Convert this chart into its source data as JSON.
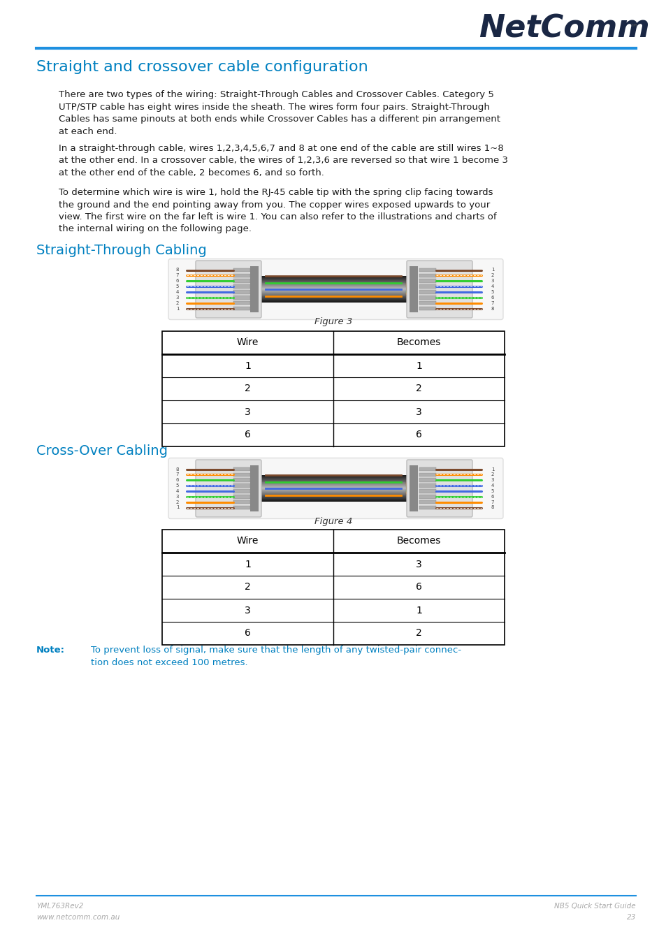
{
  "title": "Straight and crossover cable configuration",
  "title_color": "#0080C0",
  "header_line_color": "#1E90E0",
  "logo_text": "NetComm",
  "logo_tm": "™",
  "body_para1": "There are two types of the wiring: Straight-Through Cables and Crossover Cables. Category 5\nUTP/STP cable has eight wires inside the sheath. The wires form four pairs. Straight-Through\nCables has same pinouts at both ends while Crossover Cables has a different pin arrangement\nat each end.",
  "body_para2": "In a straight-through cable, wires 1,2,3,4,5,6,7 and 8 at one end of the cable are still wires 1~8\nat the other end. In a crossover cable, the wires of 1,2,3,6 are reversed so that wire 1 become 3\nat the other end of the cable, 2 becomes 6, and so forth.",
  "body_para3": "To determine which wire is wire 1, hold the RJ-45 cable tip with the spring clip facing towards\nthe ground and the end pointing away from you. The copper wires exposed upwards to your\nview. The first wire on the far left is wire 1. You can also refer to the illustrations and charts of\nthe internal wiring on the following page.",
  "section1_title": "Straight-Through Cabling",
  "section1_color": "#0080C0",
  "figure3_label": "Figure 3",
  "table1_headers": [
    "Wire",
    "Becomes"
  ],
  "table1_rows": [
    [
      "1",
      "1"
    ],
    [
      "2",
      "2"
    ],
    [
      "3",
      "3"
    ],
    [
      "6",
      "6"
    ]
  ],
  "section2_title": "Cross-Over Cabling",
  "section2_color": "#0080C0",
  "figure4_label": "Figure 4",
  "table2_headers": [
    "Wire",
    "Becomes"
  ],
  "table2_rows": [
    [
      "1",
      "3"
    ],
    [
      "2",
      "6"
    ],
    [
      "3",
      "1"
    ],
    [
      "6",
      "2"
    ]
  ],
  "note_label": "Note:",
  "note_color": "#0080C0",
  "note_text": "To prevent loss of signal, make sure that the length of any twisted-pair connec-\ntion does not exceed 100 metres.",
  "footer_left1": "YML763Rev2",
  "footer_left2": "www.netcomm.com.au",
  "footer_right1": "NB5 Quick Start Guide",
  "footer_right2": "23",
  "footer_color": "#A8A8A8",
  "bg_color": "#FFFFFF",
  "body_text_color": "#1a1a1a",
  "wire_colors": [
    "#7B4A2D",
    "#FF8C00",
    "#32CD32",
    "#4169E1",
    "#4169E1",
    "#32CD32",
    "#FF8C00",
    "#7B4A2D"
  ],
  "center_wire_colors": [
    "#FF8C00",
    "#4169E1",
    "#32CD32",
    "#7B4A2D"
  ]
}
